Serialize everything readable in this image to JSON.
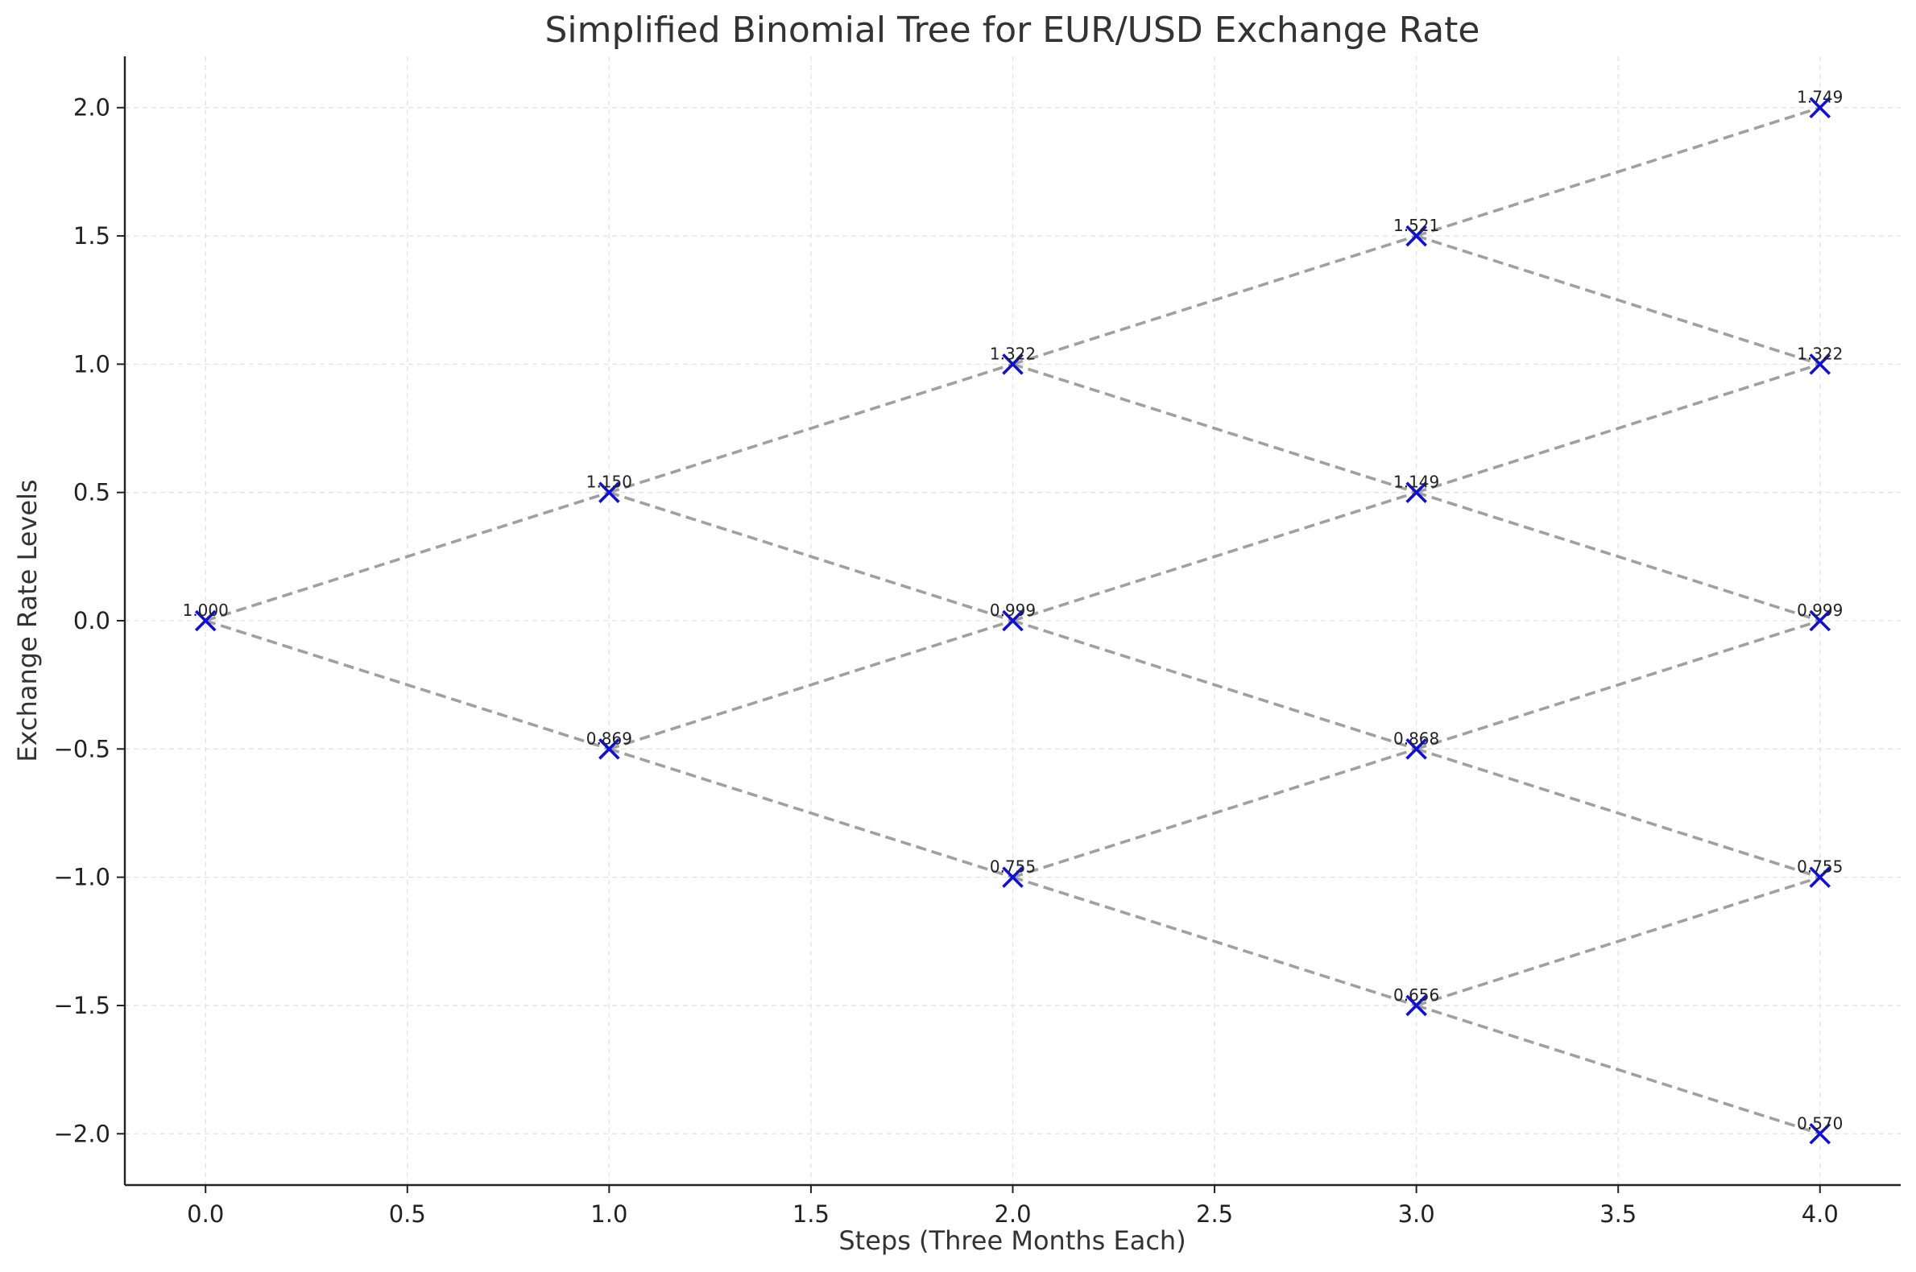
{
  "chart_data": {
    "type": "scatter",
    "title": "Simplified Binomial Tree for EUR/USD Exchange Rate",
    "xlabel": "Steps (Three Months Each)",
    "ylabel": "Exchange Rate Levels",
    "xlim": [
      -0.2,
      4.2
    ],
    "ylim": [
      -2.2,
      2.2
    ],
    "xticks": [
      0.0,
      0.5,
      1.0,
      1.5,
      2.0,
      2.5,
      3.0,
      3.5,
      4.0
    ],
    "xtick_labels": [
      "0.0",
      "0.5",
      "1.0",
      "1.5",
      "2.0",
      "2.5",
      "3.0",
      "3.5",
      "4.0"
    ],
    "yticks": [
      2.0,
      1.5,
      1.0,
      0.5,
      0.0,
      -0.5,
      -1.0,
      -1.5,
      -2.0
    ],
    "ytick_labels": [
      "2.0",
      "1.5",
      "1.0",
      "0.5",
      "0.0",
      "−0.5",
      "−1.0",
      "−1.5",
      "−2.0"
    ],
    "grid": true,
    "marker": "x",
    "marker_color": "#1010d0",
    "edge_color": "#a0a0a0",
    "nodes": [
      {
        "x": 0,
        "y": 0,
        "label": "1.000"
      },
      {
        "x": 1,
        "y": 0.5,
        "label": "1.150"
      },
      {
        "x": 1,
        "y": -0.5,
        "label": "0.869"
      },
      {
        "x": 2,
        "y": 1,
        "label": "1.322"
      },
      {
        "x": 2,
        "y": 0,
        "label": "0.999"
      },
      {
        "x": 2,
        "y": -1,
        "label": "0.755"
      },
      {
        "x": 3,
        "y": 1.5,
        "label": "1.521"
      },
      {
        "x": 3,
        "y": 0.5,
        "label": "1.149"
      },
      {
        "x": 3,
        "y": -0.5,
        "label": "0.868"
      },
      {
        "x": 3,
        "y": -1.5,
        "label": "0.656"
      },
      {
        "x": 4,
        "y": 2,
        "label": "1.749"
      },
      {
        "x": 4,
        "y": 1,
        "label": "1.322"
      },
      {
        "x": 4,
        "y": 0,
        "label": "0.999"
      },
      {
        "x": 4,
        "y": -1,
        "label": "0.755"
      },
      {
        "x": 4,
        "y": -2,
        "label": "0.570"
      }
    ],
    "edges": [
      [
        0,
        1
      ],
      [
        0,
        2
      ],
      [
        1,
        3
      ],
      [
        1,
        4
      ],
      [
        2,
        4
      ],
      [
        2,
        5
      ],
      [
        3,
        6
      ],
      [
        3,
        7
      ],
      [
        4,
        7
      ],
      [
        4,
        8
      ],
      [
        5,
        8
      ],
      [
        5,
        9
      ],
      [
        6,
        10
      ],
      [
        6,
        11
      ],
      [
        7,
        11
      ],
      [
        7,
        12
      ],
      [
        8,
        12
      ],
      [
        8,
        13
      ],
      [
        9,
        13
      ],
      [
        9,
        14
      ]
    ]
  }
}
